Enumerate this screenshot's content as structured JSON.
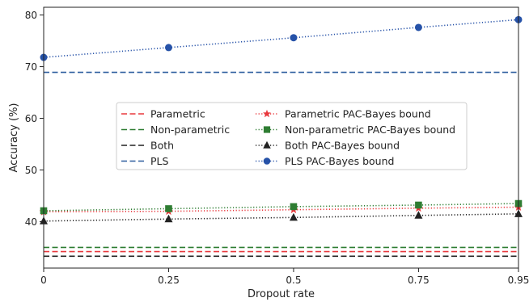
{
  "chart_data": {
    "type": "line",
    "title": "",
    "xlabel": "Dropout rate",
    "ylabel": "Accuracy (%)",
    "x": [
      0,
      0.25,
      0.5,
      0.75,
      0.95
    ],
    "x_tick_labels": [
      "0",
      "0.25",
      "0.5",
      "0.75",
      "0.95"
    ],
    "y_ticks": [
      40,
      50,
      60,
      70,
      80
    ],
    "xlim": [
      0,
      0.95
    ],
    "ylim": [
      31,
      81.5
    ],
    "grid": false,
    "legend_position": "center-left",
    "series": [
      {
        "name": "Parametric",
        "style": "dashed",
        "marker": "none",
        "color": "#e8383d",
        "values": [
          34.2,
          34.2,
          34.2,
          34.2,
          34.2
        ]
      },
      {
        "name": "Non-parametric",
        "style": "dashed",
        "marker": "none",
        "color": "#2e7d32",
        "values": [
          35.0,
          35.0,
          35.0,
          35.0,
          35.0
        ]
      },
      {
        "name": "Both",
        "style": "dashed",
        "marker": "none",
        "color": "#222222",
        "values": [
          33.3,
          33.3,
          33.3,
          33.3,
          33.3
        ]
      },
      {
        "name": "PLS",
        "style": "dashed",
        "marker": "none",
        "color": "#2b5c9e",
        "values": [
          68.9,
          68.9,
          68.9,
          68.9,
          68.9
        ]
      },
      {
        "name": "Parametric PAC-Bayes bound",
        "style": "dotted",
        "marker": "star",
        "color": "#e8383d",
        "values": [
          41.9,
          42.0,
          42.3,
          42.6,
          42.8
        ]
      },
      {
        "name": "Non-parametric PAC-Bayes bound",
        "style": "dotted",
        "marker": "square",
        "color": "#2e7d32",
        "values": [
          42.1,
          42.5,
          42.9,
          43.2,
          43.5
        ]
      },
      {
        "name": "Both PAC-Bayes bound",
        "style": "dotted",
        "marker": "triangle",
        "color": "#222222",
        "values": [
          40.1,
          40.5,
          40.8,
          41.2,
          41.5
        ]
      },
      {
        "name": "PLS PAC-Bayes bound",
        "style": "dotted",
        "marker": "circle",
        "color": "#2652a8",
        "values": [
          71.8,
          73.7,
          75.6,
          77.6,
          79.1
        ]
      }
    ]
  }
}
